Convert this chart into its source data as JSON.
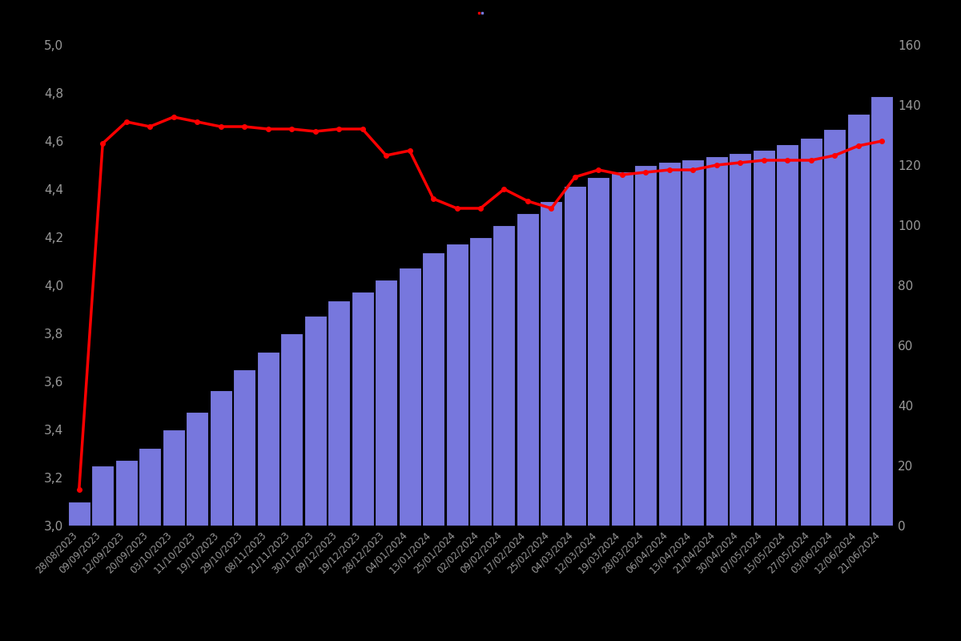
{
  "dates": [
    "28/08/2023",
    "09/09/2023",
    "12/09/2023",
    "20/09/2023",
    "03/10/2023",
    "11/10/2023",
    "19/10/2023",
    "29/10/2023",
    "08/11/2023",
    "21/11/2023",
    "30/11/2023",
    "09/12/2023",
    "19/12/2023",
    "28/12/2023",
    "04/01/2024",
    "13/01/2024",
    "25/01/2024",
    "02/02/2024",
    "09/02/2024",
    "17/02/2024",
    "25/02/2024",
    "04/03/2024",
    "12/03/2024",
    "19/03/2024",
    "28/03/2024",
    "06/04/2024",
    "13/04/2024",
    "21/04/2024",
    "30/04/2024",
    "07/05/2024",
    "15/05/2024",
    "27/05/2024",
    "03/06/2024",
    "12/06/2024",
    "21/06/2024"
  ],
  "ratings": [
    3.15,
    4.59,
    4.68,
    4.66,
    4.7,
    4.68,
    4.66,
    4.66,
    4.65,
    4.65,
    4.64,
    4.65,
    4.65,
    4.54,
    4.56,
    4.36,
    4.32,
    4.32,
    4.4,
    4.35,
    4.32,
    4.45,
    4.48,
    4.46,
    4.47,
    4.48,
    4.48,
    4.5,
    4.51,
    4.52,
    4.52,
    4.52,
    4.54,
    4.58,
    4.6
  ],
  "counts": [
    8,
    20,
    22,
    26,
    32,
    38,
    45,
    52,
    58,
    64,
    70,
    75,
    78,
    82,
    86,
    91,
    94,
    96,
    100,
    104,
    108,
    113,
    116,
    118,
    120,
    121,
    122,
    123,
    124,
    125,
    127,
    129,
    132,
    137,
    143
  ],
  "bar_color": "#7777dd",
  "bar_edge_color": "#000000",
  "line_color": "#ff0000",
  "background_color": "#000000",
  "text_color": "#999999",
  "left_ylim": [
    3.0,
    5.0
  ],
  "right_ylim": [
    0,
    160
  ],
  "left_yticks": [
    3.0,
    3.2,
    3.4,
    3.6,
    3.8,
    4.0,
    4.2,
    4.4,
    4.6,
    4.8,
    5.0
  ],
  "right_yticks": [
    0,
    20,
    40,
    60,
    80,
    100,
    120,
    140,
    160
  ],
  "legend_red_label": "",
  "legend_blue_label": "",
  "line_width": 2.5,
  "marker_size": 4,
  "bar_alpha": 1.0,
  "bar_width": 0.95
}
